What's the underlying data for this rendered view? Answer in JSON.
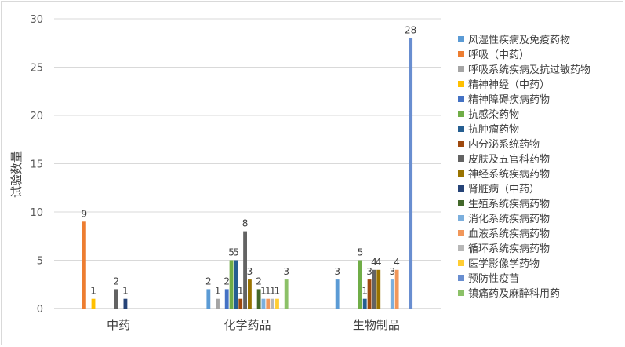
{
  "chart_data": {
    "type": "bar",
    "title": "",
    "xlabel": "",
    "ylabel": "试验数量",
    "ylim": [
      0,
      30
    ],
    "yticks": [
      0,
      5,
      10,
      15,
      20,
      25,
      30
    ],
    "grid": true,
    "legend_position": "right",
    "categories": [
      "中药",
      "化学药品",
      "生物制品"
    ],
    "series": [
      {
        "name": "风湿性疾病及免疫药物",
        "color": "#5B9BD5",
        "values": [
          null,
          2,
          3
        ]
      },
      {
        "name": "呼吸（中药）",
        "color": "#ED7D31",
        "values": [
          9,
          null,
          null
        ]
      },
      {
        "name": "呼吸系统疾病及抗过敏药物",
        "color": "#A5A5A5",
        "values": [
          null,
          1,
          null
        ]
      },
      {
        "name": "精神神经（中药）",
        "color": "#FFC000",
        "values": [
          1,
          null,
          null
        ]
      },
      {
        "name": "精神障碍疾病药物",
        "color": "#4472C4",
        "values": [
          null,
          2,
          null
        ]
      },
      {
        "name": "抗感染药物",
        "color": "#70AD47",
        "values": [
          null,
          5,
          5
        ]
      },
      {
        "name": "抗肿瘤药物",
        "color": "#255E91",
        "values": [
          null,
          5,
          1
        ]
      },
      {
        "name": "内分泌系统药物",
        "color": "#9E480E",
        "values": [
          null,
          1,
          3
        ]
      },
      {
        "name": "皮肤及五官科药物",
        "color": "#636363",
        "values": [
          2,
          8,
          4
        ]
      },
      {
        "name": "神经系统疾病药物",
        "color": "#997300",
        "values": [
          null,
          3,
          4
        ]
      },
      {
        "name": "肾脏病（中药）",
        "color": "#264478",
        "values": [
          1,
          null,
          null
        ]
      },
      {
        "name": "生殖系统疾病药物",
        "color": "#43682B",
        "values": [
          null,
          2,
          null
        ]
      },
      {
        "name": "消化系统疾病药物",
        "color": "#7CAFDD",
        "values": [
          null,
          1,
          3
        ]
      },
      {
        "name": "血液系统疾病药物",
        "color": "#F1975A",
        "values": [
          null,
          1,
          4
        ]
      },
      {
        "name": "循环系统疾病药物",
        "color": "#B7B7B7",
        "values": [
          null,
          1,
          null
        ]
      },
      {
        "name": "医学影像学药物",
        "color": "#FFCD33",
        "values": [
          null,
          1,
          null
        ]
      },
      {
        "name": "预防性疫苗",
        "color": "#698ED0",
        "values": [
          null,
          null,
          28
        ]
      },
      {
        "name": "镇痛药及麻醉科用药",
        "color": "#8CC168",
        "values": [
          null,
          3,
          null
        ]
      }
    ]
  }
}
